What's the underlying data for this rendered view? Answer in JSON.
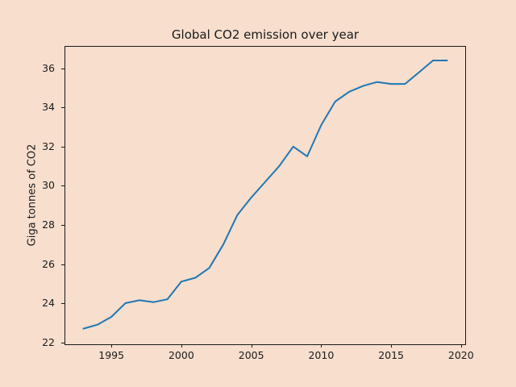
{
  "figure": {
    "background_color": "#f7decd",
    "title": "Global CO2 emission over year",
    "ylabel": "Giga tonnes of CO2"
  },
  "chart_data": {
    "type": "line",
    "title": "Global CO2 emission over year",
    "xlabel": "",
    "ylabel": "Giga tonnes of CO2",
    "line_color": "#1f77b4",
    "line_width": 2,
    "grid": false,
    "legend": "none",
    "xlim": [
      1991.7,
      2020.3
    ],
    "ylim": [
      21.9,
      37.1
    ],
    "x_ticks": [
      1995,
      2000,
      2005,
      2010,
      2015,
      2020
    ],
    "y_ticks": [
      22,
      24,
      26,
      28,
      30,
      32,
      34,
      36
    ],
    "x": [
      1993,
      1994,
      1995,
      1996,
      1997,
      1998,
      1999,
      2000,
      2001,
      2002,
      2003,
      2004,
      2005,
      2006,
      2007,
      2008,
      2009,
      2010,
      2011,
      2012,
      2013,
      2014,
      2015,
      2016,
      2017,
      2018,
      2019
    ],
    "y": [
      22.7,
      22.9,
      23.3,
      24.0,
      24.15,
      24.05,
      24.2,
      25.1,
      25.3,
      25.8,
      27.0,
      28.5,
      29.4,
      30.2,
      31.0,
      32.0,
      31.5,
      33.1,
      34.3,
      34.8,
      35.1,
      35.3,
      35.2,
      35.2,
      35.8,
      36.4,
      36.4
    ]
  }
}
